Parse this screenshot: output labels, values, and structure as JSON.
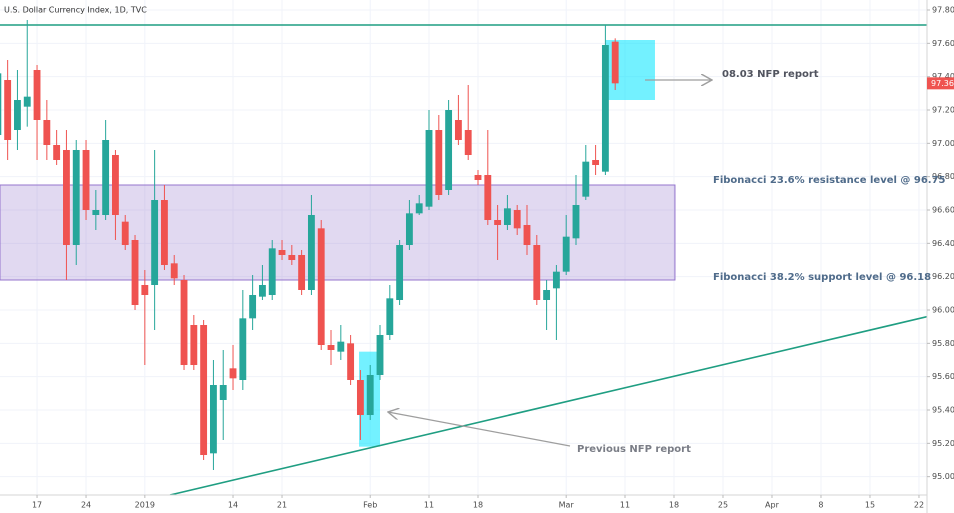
{
  "chart_data": {
    "type": "candlestick",
    "title": "U.S. Dollar Currency Index, 1D, TVC",
    "up_color": "#26a69a",
    "down_color": "#ef5350",
    "grid": true,
    "x": [
      -4,
      -3,
      -2,
      -1,
      0,
      1,
      2,
      3,
      4,
      5,
      6,
      7,
      8,
      9,
      10,
      11,
      12,
      13,
      14,
      15,
      16,
      17,
      18,
      19,
      20,
      21,
      22,
      23,
      24,
      25,
      26,
      27,
      28,
      29,
      30,
      31,
      32,
      33,
      34,
      35,
      36,
      37,
      38,
      39,
      40,
      41,
      42,
      43,
      44,
      45,
      46,
      47,
      48,
      49,
      50,
      51,
      52,
      53,
      54,
      55,
      56,
      57,
      58,
      59
    ],
    "open": [
      97.05,
      97.38,
      97.08,
      97.22,
      97.44,
      97.14,
      96.99,
      96.96,
      96.39,
      96.96,
      96.57,
      96.57,
      96.93,
      96.53,
      96.42,
      96.15,
      96.15,
      96.66,
      96.28,
      96.18,
      95.91,
      95.91,
      95.14,
      95.46,
      95.65,
      95.58,
      95.95,
      96.08,
      96.09,
      96.36,
      96.33,
      96.33,
      96.12,
      96.49,
      95.79,
      95.75,
      95.8,
      95.58,
      95.37,
      95.61,
      95.85,
      96.06,
      96.39,
      96.58,
      96.62,
      97.08,
      96.72,
      97.14,
      97.08,
      96.81,
      96.81,
      96.54,
      96.51,
      96.6,
      96.51,
      96.39,
      96.06,
      96.13,
      96.23,
      96.43,
      96.68,
      96.9,
      96.83,
      97.61
    ],
    "high": [
      97.5,
      97.5,
      97.44,
      97.74,
      97.47,
      97.26,
      97.08,
      97.08,
      97.02,
      97.02,
      96.72,
      97.14,
      96.96,
      96.57,
      96.45,
      96.24,
      96.96,
      96.75,
      96.33,
      96.21,
      95.97,
      95.94,
      95.7,
      95.76,
      95.79,
      96.12,
      96.21,
      96.27,
      96.42,
      96.42,
      96.39,
      96.36,
      96.69,
      96.54,
      95.88,
      95.91,
      95.85,
      95.64,
      95.67,
      95.91,
      96.15,
      96.42,
      96.66,
      96.69,
      97.2,
      97.17,
      97.26,
      97.29,
      97.35,
      96.84,
      97.08,
      96.63,
      96.69,
      96.63,
      96.63,
      96.45,
      96.18,
      96.27,
      96.57,
      96.81,
      96.99,
      96.99,
      97.71,
      97.63
    ],
    "low": [
      96.95,
      96.9,
      96.96,
      97.1,
      96.9,
      96.9,
      96.87,
      96.18,
      96.27,
      96.54,
      96.48,
      96.54,
      96.42,
      96.36,
      96.0,
      95.67,
      95.88,
      96.24,
      96.15,
      95.64,
      95.64,
      95.1,
      95.04,
      95.22,
      95.52,
      95.52,
      95.88,
      96.06,
      96.06,
      96.3,
      96.27,
      96.09,
      96.09,
      95.76,
      95.67,
      95.7,
      95.55,
      95.22,
      95.34,
      95.58,
      95.82,
      96.03,
      96.36,
      96.57,
      96.6,
      96.66,
      96.69,
      96.99,
      96.9,
      96.75,
      96.51,
      96.3,
      96.48,
      96.45,
      96.33,
      96.03,
      95.88,
      95.82,
      96.21,
      96.39,
      96.66,
      96.81,
      96.81,
      97.32
    ],
    "close": [
      97.42,
      97.02,
      97.26,
      97.28,
      97.14,
      96.99,
      96.9,
      96.39,
      96.96,
      96.6,
      96.6,
      97.02,
      96.57,
      96.39,
      96.03,
      96.09,
      96.66,
      96.27,
      96.19,
      95.67,
      95.67,
      95.13,
      95.55,
      95.55,
      95.59,
      95.95,
      96.09,
      96.15,
      96.37,
      96.33,
      96.3,
      96.12,
      96.57,
      95.79,
      95.76,
      95.81,
      95.58,
      95.37,
      95.61,
      95.85,
      96.07,
      96.39,
      96.58,
      96.64,
      97.08,
      96.69,
      97.2,
      97.02,
      96.93,
      96.78,
      96.54,
      96.51,
      96.61,
      96.49,
      96.39,
      96.06,
      96.12,
      96.23,
      96.44,
      96.63,
      96.89,
      96.87,
      97.59,
      97.36
    ],
    "xlim": [
      -3.78,
      90.82
    ],
    "ylim": [
      94.89,
      97.86
    ],
    "xticks": [
      {
        "value": 0,
        "label": "17"
      },
      {
        "value": 5,
        "label": "24"
      },
      {
        "value": 11,
        "label": "2019"
      },
      {
        "value": 20,
        "label": "14"
      },
      {
        "value": 25,
        "label": "21"
      },
      {
        "value": 34,
        "label": "Feb"
      },
      {
        "value": 40,
        "label": "11"
      },
      {
        "value": 45,
        "label": "18"
      },
      {
        "value": 54,
        "label": "Mar"
      },
      {
        "value": 60,
        "label": "11"
      },
      {
        "value": 65,
        "label": "18"
      },
      {
        "value": 70,
        "label": "25"
      },
      {
        "value": 75,
        "label": "Apr"
      },
      {
        "value": 80,
        "label": "8"
      },
      {
        "value": 85,
        "label": "15"
      },
      {
        "value": 90,
        "label": "22"
      }
    ],
    "yticks": [
      {
        "value": 95,
        "label": "95.00"
      },
      {
        "value": 95.2,
        "label": "95.20"
      },
      {
        "value": 95.4,
        "label": "95.40"
      },
      {
        "value": 95.6,
        "label": "95.60"
      },
      {
        "value": 95.8,
        "label": "95.80"
      },
      {
        "value": 96,
        "label": "96.00"
      },
      {
        "value": 96.2,
        "label": "96.20"
      },
      {
        "value": 96.4,
        "label": "96.40"
      },
      {
        "value": 96.6,
        "label": "96.60"
      },
      {
        "value": 96.8,
        "label": "96.80"
      },
      {
        "value": 97,
        "label": "97.00"
      },
      {
        "value": 97.2,
        "label": "97.20"
      },
      {
        "value": 97.4,
        "label": "97.40"
      },
      {
        "value": 97.6,
        "label": "97.60"
      },
      {
        "value": 97.8,
        "label": "97.80"
      }
    ],
    "hlines": [
      97.71
    ],
    "trendline": {
      "x": [
        13.57,
        90.82
      ],
      "y": [
        94.89,
        95.96
      ]
    },
    "zone": {
      "x": [
        -3.78,
        65.1
      ],
      "y": [
        96.18,
        96.75
      ]
    },
    "boxes": [
      {
        "x": [
          58.06,
          63.06
        ],
        "y": [
          97.26,
          97.62
        ]
      },
      {
        "x": [
          32.86,
          35.0
        ],
        "y": [
          95.18,
          95.75
        ]
      }
    ],
    "annotations": [
      "08.03 NFP report",
      "Fibonacci 23.6% resistance level @ 96.75",
      "Fibonacci 38.2% support level @ 96.18",
      "Previous NFP report"
    ]
  }
}
